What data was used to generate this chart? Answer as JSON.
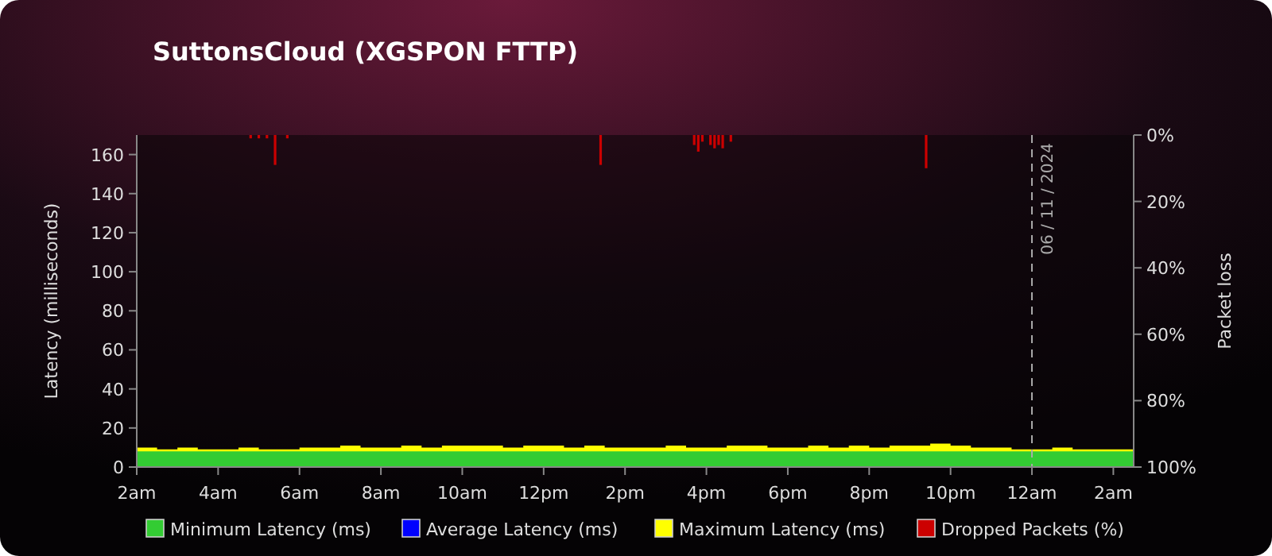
{
  "chart_data": {
    "type": "area",
    "title": "SuttonsCloud (XGSPON FTTP)",
    "ylabel": "Latency (milliseconds)",
    "y2label": "Packet loss",
    "x": [
      "2024-11-05T02:00",
      "2024-11-05T02:30",
      "2024-11-05T03:00",
      "2024-11-05T03:30",
      "2024-11-05T04:00",
      "2024-11-05T04:30",
      "2024-11-05T05:00",
      "2024-11-05T05:30",
      "2024-11-05T06:00",
      "2024-11-05T06:30",
      "2024-11-05T07:00",
      "2024-11-05T07:30",
      "2024-11-05T08:00",
      "2024-11-05T08:30",
      "2024-11-05T09:00",
      "2024-11-05T09:30",
      "2024-11-05T10:00",
      "2024-11-05T10:30",
      "2024-11-05T11:00",
      "2024-11-05T11:30",
      "2024-11-05T12:00",
      "2024-11-05T12:30",
      "2024-11-05T13:00",
      "2024-11-05T13:30",
      "2024-11-05T14:00",
      "2024-11-05T14:30",
      "2024-11-05T15:00",
      "2024-11-05T15:30",
      "2024-11-05T16:00",
      "2024-11-05T16:30",
      "2024-11-05T17:00",
      "2024-11-05T17:30",
      "2024-11-05T18:00",
      "2024-11-05T18:30",
      "2024-11-05T19:00",
      "2024-11-05T19:30",
      "2024-11-05T20:00",
      "2024-11-05T20:30",
      "2024-11-05T21:00",
      "2024-11-05T21:30",
      "2024-11-05T22:00",
      "2024-11-05T22:30",
      "2024-11-05T23:00",
      "2024-11-05T23:30",
      "2024-11-06T00:00",
      "2024-11-06T00:30",
      "2024-11-06T01:00",
      "2024-11-06T01:30",
      "2024-11-06T02:00",
      "2024-11-06T02:30"
    ],
    "xlim": [
      "2024-11-05T02:00",
      "2024-11-06T02:30"
    ],
    "xticks": [
      {
        "value": "2024-11-05T02:00",
        "label": "2am"
      },
      {
        "value": "2024-11-05T04:00",
        "label": "4am"
      },
      {
        "value": "2024-11-05T06:00",
        "label": "6am"
      },
      {
        "value": "2024-11-05T08:00",
        "label": "8am"
      },
      {
        "value": "2024-11-05T10:00",
        "label": "10am"
      },
      {
        "value": "2024-11-05T12:00",
        "label": "12pm"
      },
      {
        "value": "2024-11-05T14:00",
        "label": "2pm"
      },
      {
        "value": "2024-11-05T16:00",
        "label": "4pm"
      },
      {
        "value": "2024-11-05T18:00",
        "label": "6pm"
      },
      {
        "value": "2024-11-05T20:00",
        "label": "8pm"
      },
      {
        "value": "2024-11-05T22:00",
        "label": "10pm"
      },
      {
        "value": "2024-11-06T00:00",
        "label": "12am"
      },
      {
        "value": "2024-11-06T02:00",
        "label": "2am"
      }
    ],
    "ylim": [
      0,
      170
    ],
    "yticks": [
      0,
      20,
      40,
      60,
      80,
      100,
      120,
      140,
      160
    ],
    "y2lim": [
      100,
      0
    ],
    "y2ticks": [
      {
        "value": 0,
        "label": "0%"
      },
      {
        "value": 20,
        "label": "20%"
      },
      {
        "value": 40,
        "label": "40%"
      },
      {
        "value": 60,
        "label": "60%"
      },
      {
        "value": 80,
        "label": "80%"
      },
      {
        "value": 100,
        "label": "100%"
      }
    ],
    "series": [
      {
        "name": "Maximum Latency (ms)",
        "color": "#ffff00",
        "values": [
          10,
          9,
          10,
          9,
          9,
          10,
          9,
          9,
          10,
          10,
          11,
          10,
          10,
          11,
          10,
          11,
          11,
          11,
          10,
          11,
          11,
          10,
          11,
          10,
          10,
          10,
          11,
          10,
          10,
          11,
          11,
          10,
          10,
          11,
          10,
          11,
          10,
          11,
          11,
          12,
          11,
          10,
          10,
          9,
          9,
          10,
          9,
          9,
          9,
          9
        ]
      },
      {
        "name": "Minimum Latency (ms)",
        "color": "#33cc33",
        "values": [
          8,
          8,
          8,
          8,
          8,
          8,
          8,
          8,
          8,
          8,
          8,
          8,
          8,
          8,
          8,
          8,
          8,
          8,
          8,
          8,
          8,
          8,
          8,
          8,
          8,
          8,
          8,
          8,
          8,
          8,
          8,
          8,
          8,
          8,
          8,
          8,
          8,
          8,
          8,
          8,
          8,
          8,
          8,
          8,
          8,
          8,
          8,
          8,
          8,
          8
        ]
      },
      {
        "name": "Average Latency (ms)",
        "type": "line",
        "color": "#0000ff",
        "values": [
          null,
          null,
          null,
          null,
          null,
          null,
          null,
          null,
          null,
          null,
          null,
          null,
          null,
          null,
          null,
          null,
          null,
          null,
          null,
          null,
          null,
          null,
          null,
          null,
          null,
          null,
          null,
          null,
          null,
          null,
          null,
          null,
          null,
          null,
          null,
          null,
          null,
          null,
          null,
          null,
          null,
          null,
          null,
          null,
          null,
          null,
          null,
          null,
          null,
          null
        ]
      },
      {
        "name": "Dropped Packets (%)",
        "type": "bar",
        "axis": "y2",
        "color": "#cc0000",
        "x": [
          "2024-11-05T04:48",
          "2024-11-05T05:00",
          "2024-11-05T05:12",
          "2024-11-05T05:24",
          "2024-11-05T05:42",
          "2024-11-05T13:24",
          "2024-11-05T15:42",
          "2024-11-05T15:48",
          "2024-11-05T15:54",
          "2024-11-05T16:06",
          "2024-11-05T16:12",
          "2024-11-05T16:18",
          "2024-11-05T16:24",
          "2024-11-05T16:36",
          "2024-11-05T21:24"
        ],
        "values": [
          1,
          1,
          1,
          9,
          1,
          9,
          3,
          5,
          2,
          3,
          4,
          3,
          4,
          2,
          10
        ]
      }
    ],
    "ref_lines": [
      {
        "axis": "x",
        "value": "2024-11-06T00:00",
        "label": "06 / 11 / 2024",
        "color": "#aaaaaa",
        "line_style": "dashed"
      }
    ],
    "legend": "bottom"
  }
}
